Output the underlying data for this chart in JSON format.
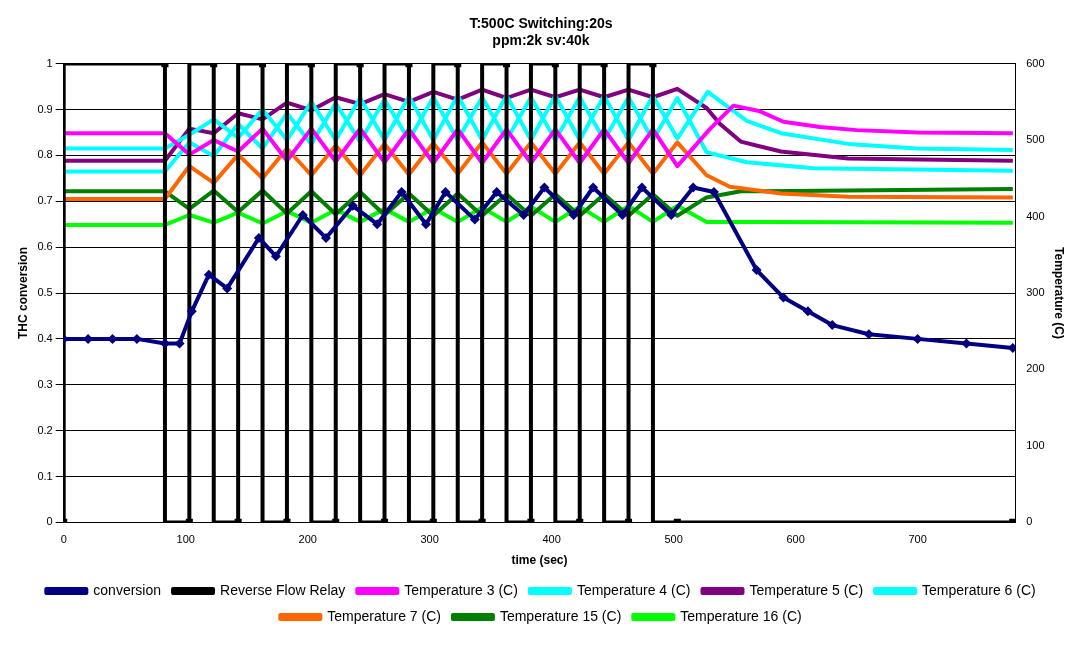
{
  "chart_data": {
    "type": "line",
    "title": "T:500C Switching:20s\nppm:2k sv:40k",
    "xlabel": "time (sec)",
    "ylabel": "THC conversion",
    "y2label": "Temperature (C)",
    "xlim": [
      0,
      780
    ],
    "xticks": [
      0,
      100,
      200,
      300,
      400,
      500,
      600,
      700
    ],
    "ylim": [
      0,
      1
    ],
    "yticks": [
      0,
      0.1,
      0.2,
      0.3,
      0.4,
      0.5,
      0.6,
      0.7,
      0.8,
      0.9,
      1
    ],
    "y2lim": [
      0,
      600
    ],
    "y2ticks": [
      0,
      100,
      200,
      300,
      400,
      500,
      600
    ],
    "grid": "y",
    "legend": "bottom",
    "line_style": "solid",
    "series": [
      {
        "name": "conversion",
        "color": "#000080",
        "marker": "diamond",
        "x": [
          0,
          20,
          40,
          60,
          83,
          95,
          105,
          119,
          134,
          160,
          174,
          196,
          215,
          237,
          257,
          277,
          297,
          313,
          337,
          355,
          377,
          394,
          418,
          434,
          458,
          474,
          498,
          516,
          533,
          568,
          590,
          610,
          630,
          660,
          700,
          740,
          778
        ],
        "values": [
          0.4,
          0.4,
          0.4,
          0.4,
          0.39,
          0.39,
          0.46,
          0.54,
          0.51,
          0.62,
          0.58,
          0.67,
          0.62,
          0.69,
          0.65,
          0.72,
          0.65,
          0.72,
          0.66,
          0.72,
          0.67,
          0.73,
          0.67,
          0.73,
          0.67,
          0.73,
          0.67,
          0.73,
          0.72,
          0.55,
          0.49,
          0.46,
          0.43,
          0.41,
          0.4,
          0.39,
          0.38
        ]
      },
      {
        "name": "Reverse Flow Relay",
        "color": "#000000",
        "type": "step",
        "marker": "square",
        "x": [
          0,
          83,
          103,
          123,
          143,
          163,
          183,
          203,
          223,
          243,
          263,
          283,
          303,
          323,
          343,
          363,
          383,
          403,
          423,
          443,
          463,
          483,
          503,
          778
        ],
        "values": [
          0,
          1,
          0,
          1,
          0,
          1,
          0,
          1,
          0,
          1,
          0,
          1,
          0,
          1,
          0,
          1,
          0,
          1,
          0,
          1,
          0,
          1,
          0,
          0
        ]
      },
      {
        "name": "Temperature 3 (C)",
        "color": "#ff00ff",
        "axis": "y2",
        "marker": "none",
        "x": [
          0,
          83,
          103,
          123,
          143,
          163,
          183,
          203,
          223,
          243,
          263,
          283,
          303,
          323,
          343,
          363,
          383,
          403,
          423,
          443,
          463,
          483,
          503,
          530,
          549,
          570,
          590,
          620,
          650,
          700,
          778
        ],
        "values": [
          509,
          509,
          481,
          500,
          485,
          515,
          473,
          515,
          472,
          515,
          471,
          514,
          470,
          514,
          470,
          514,
          470,
          514,
          470,
          514,
          470,
          514,
          466,
          515,
          545,
          538,
          524,
          517,
          513,
          510,
          509
        ]
      },
      {
        "name": "Temperature 4 (C)",
        "color": "#00ffff",
        "axis": "y2",
        "marker": "none",
        "x": [
          0,
          83,
          103,
          123,
          143,
          163,
          183,
          203,
          223,
          243,
          263,
          283,
          303,
          323,
          343,
          363,
          383,
          403,
          423,
          443,
          463,
          483,
          503,
          528,
          560,
          588,
          643,
          699,
          778
        ],
        "values": [
          489,
          489,
          507,
          527,
          503,
          540,
          500,
          550,
          500,
          555,
          500,
          557,
          500,
          558,
          500,
          558,
          500,
          558,
          500,
          558,
          500,
          558,
          502,
          563,
          525,
          509,
          495,
          489,
          487
        ]
      },
      {
        "name": "Temperature 5 (C)",
        "color": "#800080",
        "axis": "y2",
        "marker": "none",
        "x": [
          0,
          83,
          103,
          123,
          143,
          163,
          183,
          203,
          223,
          243,
          263,
          283,
          303,
          323,
          343,
          363,
          383,
          403,
          423,
          443,
          463,
          483,
          503,
          527,
          538,
          555,
          588,
          643,
          778
        ],
        "values": [
          473,
          473,
          515,
          509,
          535,
          527,
          549,
          539,
          556,
          547,
          560,
          550,
          563,
          553,
          566,
          555,
          566,
          556,
          566,
          556,
          566,
          556,
          567,
          542,
          521,
          498,
          485,
          476,
          473
        ]
      },
      {
        "name": "Temperature 6 (C)",
        "color": "#00ffff",
        "axis": "y2",
        "marker": "none",
        "x": [
          0,
          83,
          103,
          123,
          143,
          163,
          183,
          203,
          223,
          243,
          263,
          283,
          303,
          323,
          343,
          363,
          383,
          403,
          423,
          443,
          463,
          483,
          503,
          527,
          560,
          615,
          778
        ],
        "values": [
          459,
          459,
          497,
          479,
          521,
          489,
          535,
          495,
          548,
          498,
          553,
          500,
          556,
          500,
          556,
          500,
          556,
          500,
          556,
          500,
          556,
          500,
          555,
          484,
          471,
          463,
          460
        ]
      },
      {
        "name": "Temperature 7 (C)",
        "color": "#ff6600",
        "axis": "y2",
        "marker": "none",
        "x": [
          0,
          83,
          103,
          123,
          143,
          163,
          183,
          203,
          223,
          243,
          263,
          283,
          303,
          323,
          343,
          363,
          383,
          403,
          423,
          443,
          463,
          483,
          503,
          527,
          546,
          588,
          643,
          778
        ],
        "values": [
          423,
          423,
          466,
          444,
          481,
          450,
          489,
          454,
          493,
          454,
          495,
          455,
          496,
          456,
          497,
          456,
          497,
          456,
          497,
          456,
          497,
          456,
          497,
          454,
          439,
          430,
          426,
          425
        ]
      },
      {
        "name": "Temperature 15 (C)",
        "color": "#008000",
        "axis": "y2",
        "marker": "none",
        "x": [
          0,
          83,
          103,
          123,
          143,
          163,
          183,
          203,
          223,
          243,
          263,
          283,
          303,
          323,
          343,
          363,
          383,
          403,
          423,
          443,
          463,
          483,
          503,
          527,
          555,
          643,
          778
        ],
        "values": [
          433,
          433,
          410,
          434,
          406,
          434,
          404,
          433,
          403,
          432,
          402,
          430,
          401,
          430,
          401,
          429,
          401,
          429,
          401,
          429,
          401,
          429,
          401,
          425,
          433,
          434,
          436
        ]
      },
      {
        "name": "Temperature 16 (C)",
        "color": "#00ff00",
        "axis": "y2",
        "marker": "none",
        "x": [
          0,
          83,
          103,
          123,
          143,
          163,
          183,
          203,
          223,
          243,
          263,
          283,
          303,
          323,
          343,
          363,
          383,
          403,
          423,
          443,
          463,
          483,
          503,
          527,
          778
        ],
        "values": [
          389,
          389,
          402,
          392,
          405,
          391,
          407,
          392,
          409,
          393,
          410,
          393,
          411,
          393,
          412,
          393,
          413,
          393,
          413,
          393,
          414,
          393,
          414,
          393,
          392
        ]
      }
    ]
  }
}
